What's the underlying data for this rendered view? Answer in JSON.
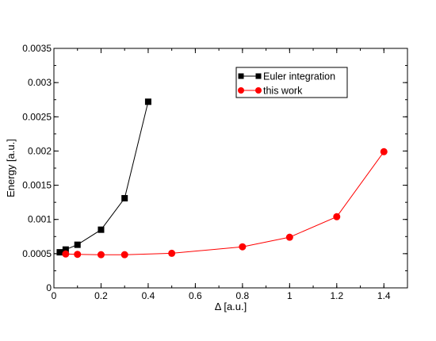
{
  "chart_data": {
    "type": "line",
    "title": "",
    "xlabel": "Δ [a.u.]",
    "ylabel": "Energy [a.u.]",
    "xlim": [
      0,
      1.5
    ],
    "ylim": [
      0,
      0.0035
    ],
    "x_ticks": [
      0,
      0.2,
      0.4,
      0.6,
      0.8,
      1,
      1.2,
      1.4
    ],
    "x_tick_labels": [
      "0",
      "0.2",
      "0.4",
      "0.6",
      "0.8",
      "1",
      "1.2",
      "1.4"
    ],
    "y_ticks": [
      0,
      0.0005,
      0.001,
      0.0015,
      0.002,
      0.0025,
      0.003,
      0.0035
    ],
    "y_tick_labels": [
      "0",
      "0.0005",
      "0.001",
      "0.0015",
      "0.002",
      "0.0025",
      "0.003",
      "0.0035"
    ],
    "grid": false,
    "legend_position": "top-right",
    "series": [
      {
        "name": "Euler integration",
        "color": "#000000",
        "marker": "square",
        "x": [
          0.025,
          0.05,
          0.1,
          0.2,
          0.3,
          0.4
        ],
        "y": [
          0.00052,
          0.00056,
          0.00063,
          0.00085,
          0.00131,
          0.00272
        ]
      },
      {
        "name": "this work",
        "color": "#ff0000",
        "marker": "circle",
        "x": [
          0.05,
          0.1,
          0.2,
          0.3,
          0.5,
          0.8,
          1.0,
          1.2,
          1.4
        ],
        "y": [
          0.000495,
          0.00049,
          0.000485,
          0.000485,
          0.000505,
          0.0006,
          0.00074,
          0.00104,
          0.00199
        ]
      }
    ]
  }
}
